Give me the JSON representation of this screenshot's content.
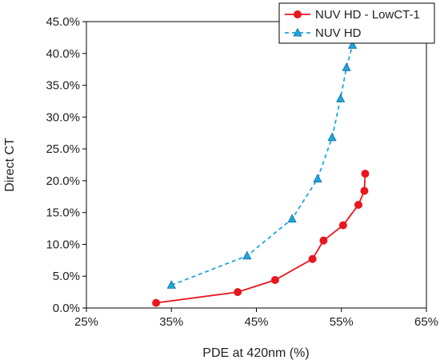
{
  "chart_data": {
    "type": "line",
    "xlabel": "PDE at 420nm (%)",
    "ylabel": "Direct CT",
    "xlim": [
      25,
      65
    ],
    "ylim": [
      0,
      45
    ],
    "x_ticks": [
      "25%",
      "35%",
      "45%",
      "55%",
      "65%"
    ],
    "y_ticks": [
      "0.0%",
      "5.0%",
      "10.0%",
      "15.0%",
      "20.0%",
      "25.0%",
      "30.0%",
      "35.0%",
      "40.0%",
      "45.0%"
    ],
    "grid": false,
    "legend_position": "top-right",
    "series": [
      {
        "name": "NUV HD - LowCT-1",
        "color": "#e8161e",
        "line": "solid",
        "marker": "circle",
        "points": [
          {
            "x": 33.2,
            "y": 0.8
          },
          {
            "x": 42.8,
            "y": 2.5
          },
          {
            "x": 47.2,
            "y": 4.4
          },
          {
            "x": 51.6,
            "y": 7.7
          },
          {
            "x": 52.9,
            "y": 10.6
          },
          {
            "x": 55.2,
            "y": 13.0
          },
          {
            "x": 57.0,
            "y": 16.2
          },
          {
            "x": 57.7,
            "y": 18.4
          },
          {
            "x": 57.8,
            "y": 21.1
          }
        ]
      },
      {
        "name": "NUV HD",
        "color": "#1ea6e0",
        "line": "dashed",
        "marker": "triangle",
        "points": [
          {
            "x": 35.0,
            "y": 3.6
          },
          {
            "x": 43.9,
            "y": 8.2
          },
          {
            "x": 49.2,
            "y": 14.0
          },
          {
            "x": 52.2,
            "y": 20.3
          },
          {
            "x": 53.9,
            "y": 26.8
          },
          {
            "x": 54.9,
            "y": 32.9
          },
          {
            "x": 55.6,
            "y": 37.8
          },
          {
            "x": 56.3,
            "y": 41.3
          }
        ]
      }
    ]
  }
}
